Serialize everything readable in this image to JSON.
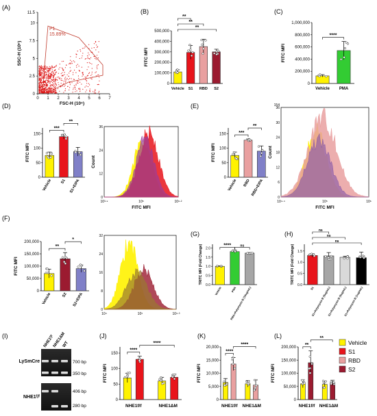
{
  "colors": {
    "vehicle": "#FFF200",
    "s1": "#E8141B",
    "rbd": "#E9A0A0",
    "s2": "#9B1B30",
    "pma": "#33CC33",
    "blue": "#8080C8",
    "gray": "#A6A6A6",
    "black": "#000000",
    "white": "#FFFFFF"
  },
  "panels": {
    "A": {
      "label": "(A)",
      "gate_name": "P1",
      "gate_pct": "15.89%",
      "ylabel": "SSC-H (10⁶)",
      "xlabel": "FSC-H (10⁶)",
      "yticks": [
        "0",
        "2.5",
        "5",
        "7.5",
        "10",
        "11.5"
      ],
      "xticks": [
        "0",
        "1",
        "2",
        "3",
        "4",
        "5",
        "6",
        "7"
      ]
    },
    "B": {
      "label": "(B)",
      "ylabel": "FITC MFI",
      "yticks": [
        "0",
        "100,000",
        "200,000",
        "300,000",
        "400,000",
        "500,000"
      ],
      "sig": [
        "**",
        "**",
        "**"
      ]
    },
    "C": {
      "label": "(C)",
      "ylabel": "FITC MFI",
      "yticks": [
        "0",
        "200,000",
        "400,000",
        "600,000",
        "800,000",
        "1,000,000"
      ],
      "sig": [
        "****"
      ]
    },
    "D": {
      "label": "(D)",
      "ylabel": "FITC MFI",
      "yticks": [
        "0",
        "50",
        "100",
        "150"
      ],
      "sig": [
        "***",
        "**"
      ],
      "hist_ylabel": "Count",
      "hist_xlabel": "FITC MFI",
      "hist_yticks": [
        "0",
        "12",
        "24",
        "36"
      ],
      "hist_xticks": [
        "10³·⁹",
        "10⁵",
        "10⁶·²"
      ]
    },
    "E": {
      "label": "(E)",
      "ylabel": "FITC MFI",
      "yticks": [
        "0",
        "50",
        "100",
        "150"
      ],
      "sig": [
        "***",
        "**"
      ],
      "hist_ylabel": "Count",
      "hist_xlabel": "FITC MFI",
      "hist_yticks": [
        "0",
        "6",
        "12",
        "18",
        "24",
        "30",
        "36"
      ],
      "hist_top": "154",
      "hist_xticks": [
        "10⁴·⁴",
        "10⁵",
        "10⁶"
      ]
    },
    "F": {
      "label": "(F)",
      "ylabel": "FITC MFI",
      "yticks": [
        "0",
        "50,000",
        "100,000",
        "150,000",
        "200,000"
      ],
      "sig": [
        "**",
        "*"
      ],
      "hist_yticks": [
        "0",
        "8",
        "16",
        "24",
        "32"
      ],
      "hist_xticks": [
        "10⁴",
        "10⁵",
        "10⁶·³"
      ]
    },
    "G": {
      "label": "(G)",
      "ylabel": "TRITC MFI (Fold Change)",
      "yticks": [
        "0.0",
        "0.5",
        "1.0",
        "1.5",
        "2.0"
      ],
      "sig": [
        "****",
        "ns"
      ]
    },
    "H": {
      "label": "(H)",
      "ylabel": "TRITC MFI (Fold Change)",
      "yticks": [
        "0.0",
        "0.5",
        "1.0",
        "1.5"
      ],
      "sig": [
        "ns",
        "ns",
        "ns"
      ]
    },
    "I": {
      "label": "(I)",
      "lanes": [
        "NHE1ᶠ/ᶠ",
        "NHE1ΔM",
        "WT"
      ],
      "row1": "LySmCre",
      "row2": "NHE1ᶠ/ᶠ",
      "bands1": [
        "700 bp",
        "350 bp"
      ],
      "bands2": [
        "406 bp",
        "280 bp"
      ]
    },
    "J": {
      "label": "(J)",
      "ylabel": "FITC MFI",
      "yticks": [
        "0",
        "50",
        "100",
        "150"
      ],
      "sig": [
        "****",
        "****"
      ],
      "groups": [
        "NHE1f/f",
        "NHE1ΔM"
      ]
    },
    "K": {
      "label": "(K)",
      "ylabel": "FITC MFI",
      "yticks": [
        "0",
        "5,000",
        "10,000",
        "15,000",
        "20,000"
      ],
      "sig": [
        "****",
        "****"
      ],
      "groups": [
        "NHE1f/f",
        "NHE1ΔM"
      ]
    },
    "L": {
      "label": "(L)",
      "ylabel": "FITC MFI",
      "yticks": [
        "0",
        "50,000",
        "100,000",
        "150,000",
        "200,000"
      ],
      "sig": [
        "**",
        "**"
      ],
      "groups": [
        "NHE1f/f",
        "NHE1ΔM"
      ]
    }
  },
  "legend": [
    {
      "label": "Vehicle",
      "color": "#FFF200"
    },
    {
      "label": "S1",
      "color": "#E8141B"
    },
    {
      "label": "RBD",
      "color": "#E9A0A0"
    },
    {
      "label": "S2",
      "color": "#9B1B30"
    }
  ],
  "chart_data": [
    {
      "panel": "B",
      "type": "bar",
      "categories": [
        "Vehicle",
        "S1",
        "RBD",
        "S2"
      ],
      "values": [
        110000,
        295000,
        350000,
        300000
      ],
      "errors": [
        20000,
        65000,
        70000,
        25000
      ],
      "colors": [
        "#FFF200",
        "#E8141B",
        "#E9A0A0",
        "#9B1B30"
      ],
      "ylabel": "FITC MFI",
      "ylim": [
        0,
        500000
      ]
    },
    {
      "panel": "C",
      "type": "bar",
      "categories": [
        "Vehicle",
        "PMA"
      ],
      "values": [
        125000,
        540000
      ],
      "errors": [
        20000,
        150000
      ],
      "colors": [
        "#FFF200",
        "#33CC33"
      ],
      "ylabel": "FITC MFI",
      "ylim": [
        0,
        1000000
      ]
    },
    {
      "panel": "D",
      "type": "bar",
      "categories": [
        "Vehicle",
        "S1",
        "S1+EIPA"
      ],
      "values": [
        75,
        140,
        88
      ],
      "errors": [
        12,
        8,
        15
      ],
      "colors": [
        "#FFF200",
        "#E8141B",
        "#8080C8"
      ],
      "ylabel": "FITC MFI",
      "ylim": [
        0,
        170
      ]
    },
    {
      "panel": "E",
      "type": "bar",
      "categories": [
        "Vehicle",
        "RBD",
        "RBD+EIPA"
      ],
      "values": [
        75,
        128,
        90
      ],
      "errors": [
        12,
        4,
        18
      ],
      "colors": [
        "#FFF200",
        "#E9A0A0",
        "#8080C8"
      ],
      "ylabel": "FITC MFI",
      "ylim": [
        0,
        170
      ]
    },
    {
      "panel": "F",
      "type": "bar",
      "categories": [
        "Vehicle",
        "S2",
        "S2+EIPA"
      ],
      "values": [
        70000,
        130000,
        90000
      ],
      "errors": [
        18000,
        25000,
        15000
      ],
      "colors": [
        "#FFF200",
        "#9B1B30",
        "#8080C8"
      ],
      "ylabel": "FITC MFI",
      "ylim": [
        0,
        200000
      ]
    },
    {
      "panel": "G",
      "type": "bar",
      "categories": [
        "Vehicle",
        "PMA",
        "PMA+Polymyxin B (10ug/mL)"
      ],
      "values": [
        1.0,
        1.8,
        1.72
      ],
      "errors": [
        0.02,
        0.08,
        0.03
      ],
      "colors": [
        "#FFF200",
        "#33CC33",
        "#A6A6A6"
      ],
      "ylabel": "TRITC MFI (Fold Change)",
      "ylim": [
        0,
        2.2
      ]
    },
    {
      "panel": "H",
      "type": "bar",
      "categories": [
        "S1",
        "S1+Polymyxin B (5ug/mL)",
        "S1+Polymyxin B (5ug/mL)",
        "S1+Polymyxin B (1ug/mL)"
      ],
      "values": [
        1.3,
        1.28,
        1.22,
        1.2
      ],
      "errors": [
        0.08,
        0.15,
        0.05,
        0.25
      ],
      "colors": [
        "#E8141B",
        "#A6A6A6",
        "#D9D9D9",
        "#000000"
      ],
      "ylabel": "TRITC MFI (Fold Change)",
      "ylim": [
        0,
        1.8
      ]
    },
    {
      "panel": "J",
      "type": "bar",
      "categories": [
        "Vehicle",
        "S1",
        "Vehicle",
        "S1"
      ],
      "groups": [
        "NHE1f/f",
        "NHE1ΔM"
      ],
      "values": [
        70,
        130,
        60,
        72
      ],
      "errors": [
        15,
        10,
        12,
        10
      ],
      "colors": [
        "#FFF200",
        "#E8141B",
        "#FFF200",
        "#E8141B"
      ],
      "ylabel": "FITC MFI",
      "ylim": [
        0,
        170
      ]
    },
    {
      "panel": "K",
      "type": "bar",
      "categories": [
        "Vehicle",
        "RBD",
        "Vehicle",
        "RBD"
      ],
      "groups": [
        "NHE1f/f",
        "NHE1ΔM"
      ],
      "values": [
        6500,
        13500,
        6000,
        5500
      ],
      "errors": [
        1500,
        2500,
        1200,
        2000
      ],
      "colors": [
        "#FFF200",
        "#E9A0A0",
        "#FFF200",
        "#E9A0A0"
      ],
      "ylabel": "FITC MFI",
      "ylim": [
        0,
        20000
      ]
    },
    {
      "panel": "L",
      "type": "bar",
      "categories": [
        "Vehicle",
        "S2",
        "Vehicle",
        "S2"
      ],
      "groups": [
        "NHE1f/f",
        "NHE1ΔM"
      ],
      "values": [
        60000,
        140000,
        58000,
        63000
      ],
      "errors": [
        15000,
        45000,
        12000,
        10000
      ],
      "colors": [
        "#FFF200",
        "#9B1B30",
        "#FFF200",
        "#9B1B30"
      ],
      "ylabel": "FITC MFI",
      "ylim": [
        0,
        200000
      ]
    }
  ]
}
